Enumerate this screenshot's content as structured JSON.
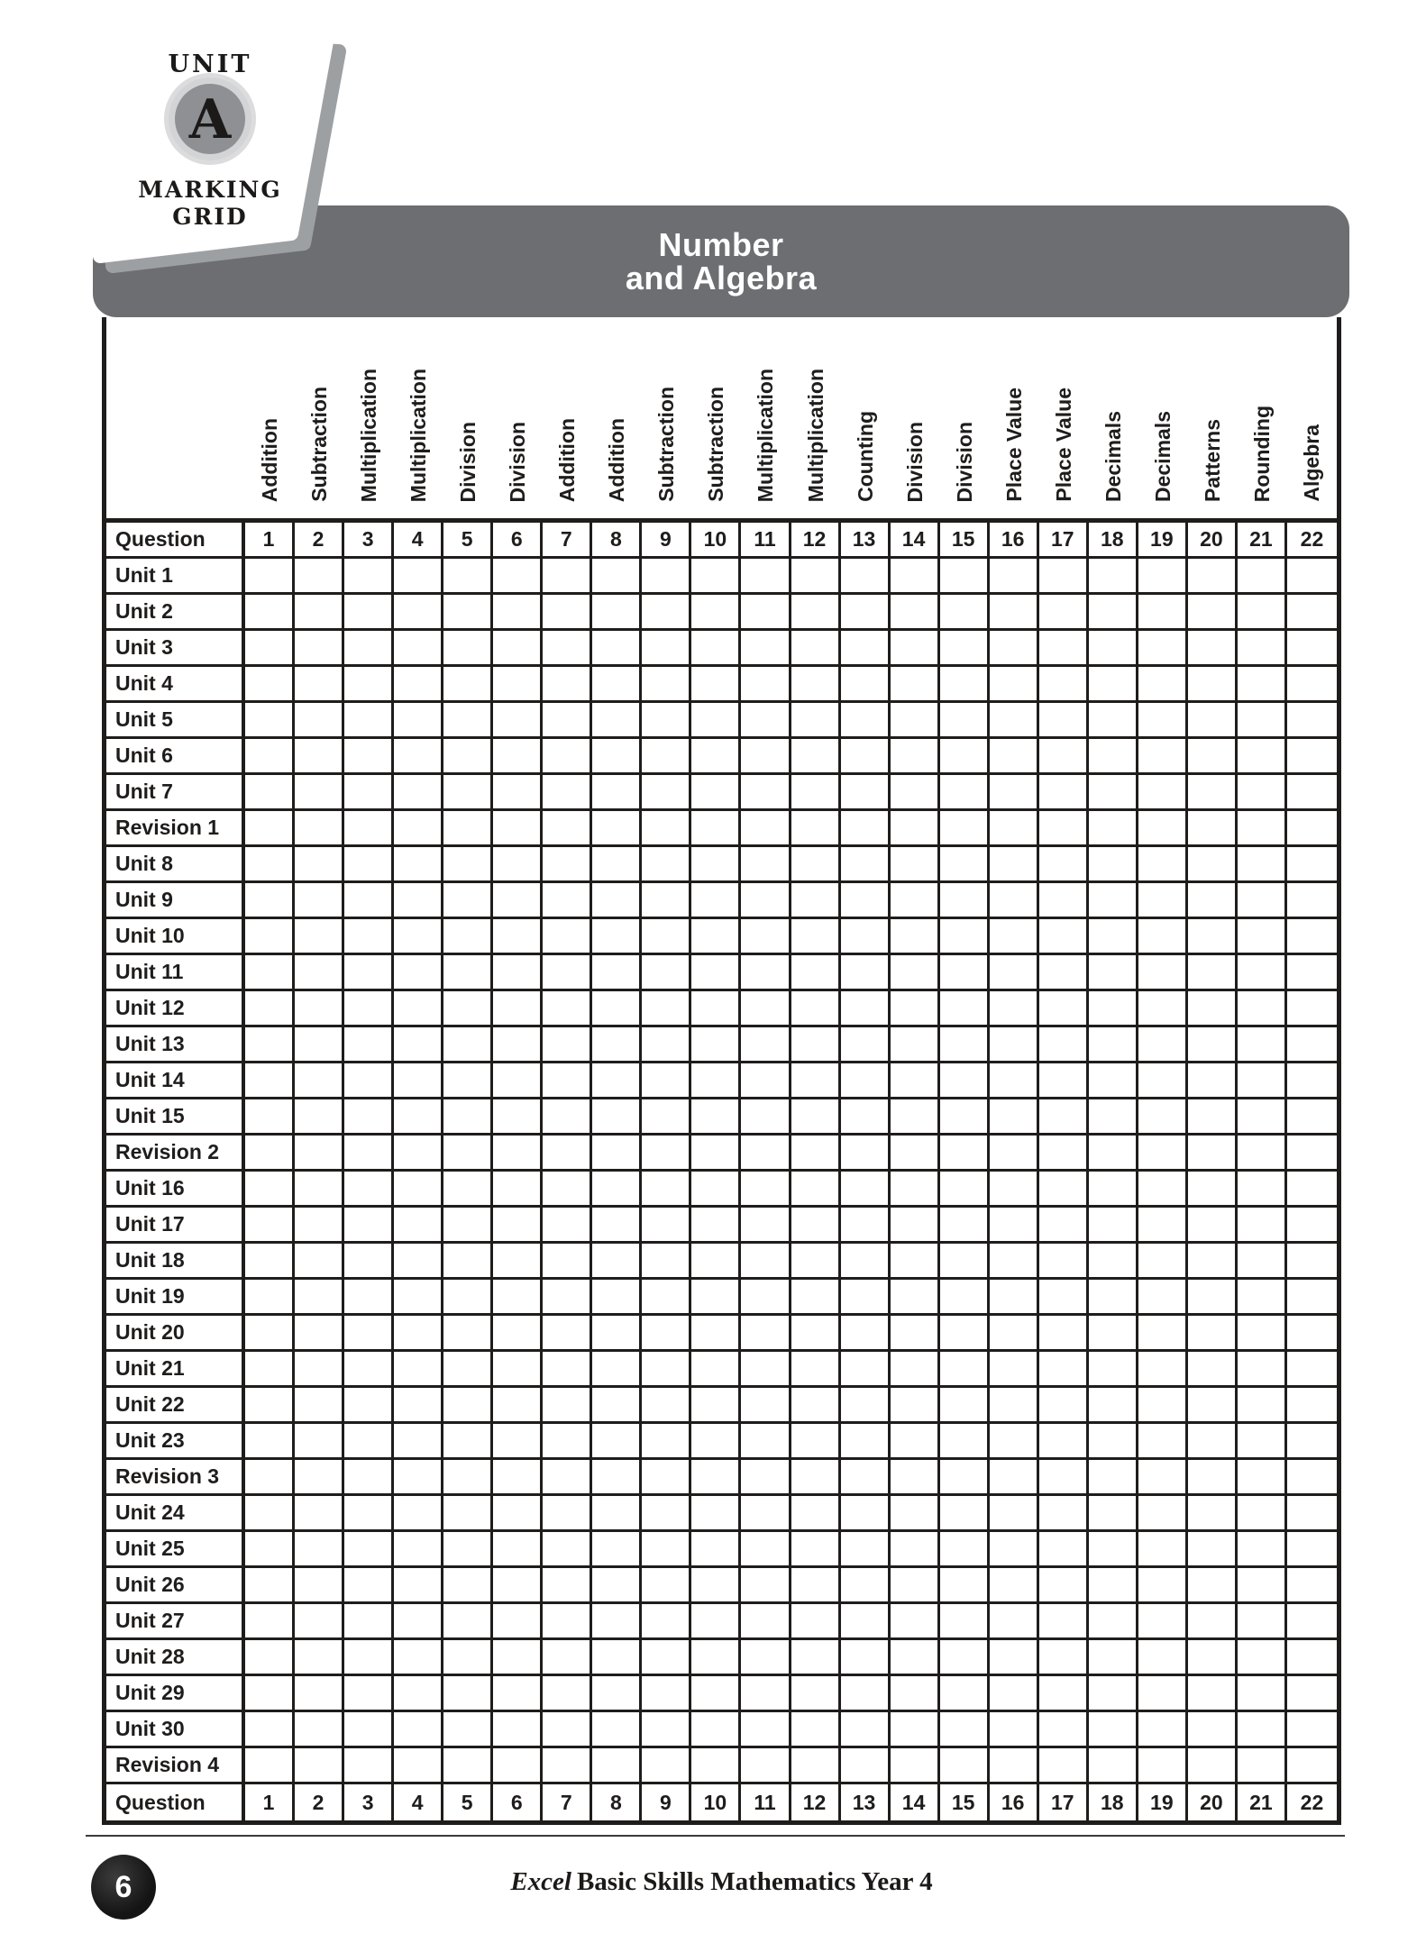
{
  "badge": {
    "unit": "UNIT",
    "letter": "A",
    "caption_line1": "MARKING",
    "caption_line2": "GRID"
  },
  "banner": {
    "title_line1": "Number",
    "title_line2": "and Algebra"
  },
  "grid": {
    "corner_label": "Question",
    "bottom_corner_label": "Question",
    "columns": [
      {
        "num": "1",
        "topic": "Addition"
      },
      {
        "num": "2",
        "topic": "Subtraction"
      },
      {
        "num": "3",
        "topic": "Multiplication"
      },
      {
        "num": "4",
        "topic": "Multiplication"
      },
      {
        "num": "5",
        "topic": "Division"
      },
      {
        "num": "6",
        "topic": "Division"
      },
      {
        "num": "7",
        "topic": "Addition"
      },
      {
        "num": "8",
        "topic": "Addition"
      },
      {
        "num": "9",
        "topic": "Subtraction"
      },
      {
        "num": "10",
        "topic": "Subtraction"
      },
      {
        "num": "11",
        "topic": "Multiplication"
      },
      {
        "num": "12",
        "topic": "Multiplication"
      },
      {
        "num": "13",
        "topic": "Counting"
      },
      {
        "num": "14",
        "topic": "Division"
      },
      {
        "num": "15",
        "topic": "Division"
      },
      {
        "num": "16",
        "topic": "Place Value"
      },
      {
        "num": "17",
        "topic": "Place Value"
      },
      {
        "num": "18",
        "topic": "Decimals"
      },
      {
        "num": "19",
        "topic": "Decimals"
      },
      {
        "num": "20",
        "topic": "Patterns"
      },
      {
        "num": "21",
        "topic": "Rounding"
      },
      {
        "num": "22",
        "topic": "Algebra"
      }
    ],
    "row_labels": [
      "Unit 1",
      "Unit 2",
      "Unit 3",
      "Unit 4",
      "Unit 5",
      "Unit 6",
      "Unit 7",
      "Revision 1",
      "Unit 8",
      "Unit 9",
      "Unit 10",
      "Unit 11",
      "Unit 12",
      "Unit 13",
      "Unit 14",
      "Unit 15",
      "Revision 2",
      "Unit 16",
      "Unit 17",
      "Unit 18",
      "Unit 19",
      "Unit 20",
      "Unit 21",
      "Unit 22",
      "Unit 23",
      "Revision 3",
      "Unit 24",
      "Unit 25",
      "Unit 26",
      "Unit 27",
      "Unit 28",
      "Unit 29",
      "Unit 30",
      "Revision 4"
    ]
  },
  "footer": {
    "page_number": "6",
    "title_italic": "Excel",
    "title_rest": "Basic Skills Mathematics Year 4"
  },
  "colors": {
    "ink": "#1f1d1c",
    "banner_gray": "#6d6e71",
    "badge_circle_fill": "#8e9093",
    "badge_circle_ring": "#d3d4d6",
    "badge_shadow": "#9da0a3"
  }
}
